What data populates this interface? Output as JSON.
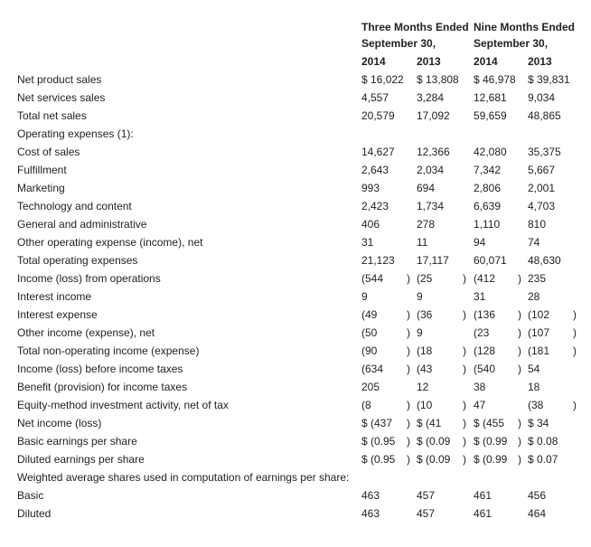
{
  "header": {
    "three_months": "Three Months Ended",
    "nine_months": "Nine Months Ended",
    "period_three": "September 30,",
    "period_nine": "September 30,",
    "years": [
      "2014",
      "2013",
      "2014",
      "2013"
    ]
  },
  "rows": [
    {
      "label": "Net product sales",
      "values": [
        "$ 16,022",
        "$ 13,808",
        "$ 46,978",
        "$ 39,831"
      ]
    },
    {
      "label": "Net services sales",
      "values": [
        "4,557",
        "3,284",
        "12,681",
        "9,034"
      ]
    },
    {
      "label": "Total net sales",
      "values": [
        "20,579",
        "17,092",
        "59,659",
        "48,865"
      ]
    },
    {
      "label": "Operating expenses (1):",
      "values": []
    },
    {
      "label": "Cost of sales",
      "values": [
        "14,627",
        "12,366",
        "42,080",
        "35,375"
      ]
    },
    {
      "label": "Fulfillment",
      "values": [
        "2,643",
        "2,034",
        "7,342",
        "5,667"
      ]
    },
    {
      "label": "Marketing",
      "values": [
        "993",
        "694",
        "2,806",
        "2,001"
      ]
    },
    {
      "label": "Technology and content",
      "values": [
        "2,423",
        "1,734",
        "6,639",
        "4,703"
      ]
    },
    {
      "label": "General and administrative",
      "values": [
        "406",
        "278",
        "1,110",
        "810"
      ]
    },
    {
      "label": "Other operating expense (income), net",
      "values": [
        "31",
        "11",
        "94",
        "74"
      ]
    },
    {
      "label": "Total operating expenses",
      "values": [
        "21,123",
        "17,117",
        "60,071",
        "48,630"
      ]
    },
    {
      "label": "Income (loss) from operations",
      "values": [
        "(544)",
        "(25)",
        "(412)",
        "235"
      ]
    },
    {
      "label": "Interest income",
      "values": [
        "9",
        "9",
        "31",
        "28"
      ]
    },
    {
      "label": "Interest expense",
      "values": [
        "(49)",
        "(36)",
        "(136)",
        "(102)"
      ]
    },
    {
      "label": "Other income (expense), net",
      "values": [
        "(50)",
        "9",
        "(23)",
        "(107)"
      ]
    },
    {
      "label": "Total non-operating income (expense)",
      "values": [
        "(90)",
        "(18)",
        "(128)",
        "(181)"
      ]
    },
    {
      "label": "Income (loss) before income taxes",
      "values": [
        "(634)",
        "(43)",
        "(540)",
        "54"
      ]
    },
    {
      "label": "Benefit (provision) for income taxes",
      "values": [
        "205",
        "12",
        "38",
        "18"
      ]
    },
    {
      "label": "Equity-method investment activity, net of tax",
      "values": [
        "(8)",
        "(10)",
        "47",
        "(38)"
      ]
    },
    {
      "label": "Net income (loss)",
      "values": [
        "$ (437)",
        "$ (41)",
        "$ (455)",
        "$ 34"
      ]
    },
    {
      "label": "Basic earnings per share",
      "values": [
        "$ (0.95)",
        "$ (0.09)",
        "$ (0.99)",
        "$ 0.08"
      ]
    },
    {
      "label": "Diluted earnings per share",
      "values": [
        "$ (0.95)",
        "$ (0.09)",
        "$ (0.99)",
        "$ 0.07"
      ]
    },
    {
      "label": "Weighted average shares used in computation of earnings per share:",
      "values": []
    },
    {
      "label": "Basic",
      "values": [
        "463",
        "457",
        "461",
        "456"
      ]
    },
    {
      "label": "Diluted",
      "values": [
        "463",
        "457",
        "461",
        "464"
      ]
    }
  ]
}
